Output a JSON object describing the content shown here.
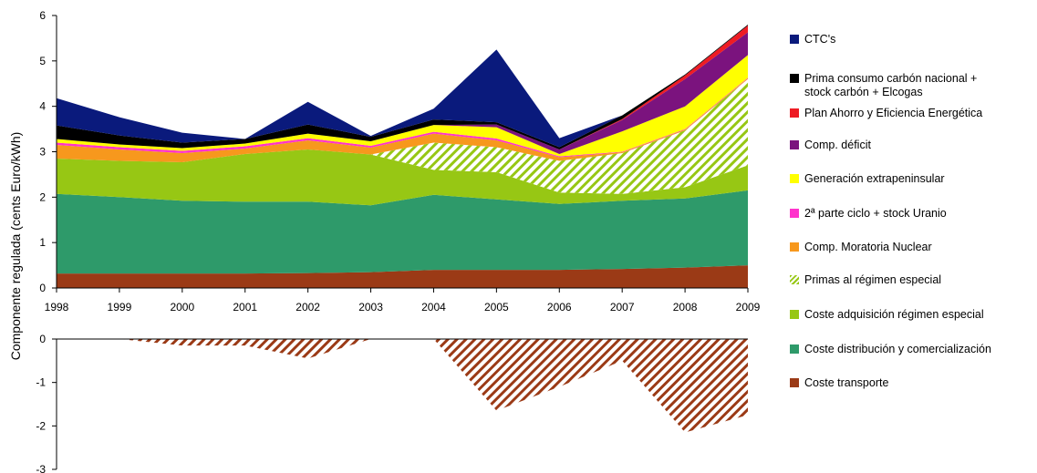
{
  "chart_data": {
    "type": "area",
    "stacked": true,
    "title": "",
    "xlabel": "",
    "ylabel": "Componente regulada (cents Euro/kWh)",
    "x": [
      1998,
      1999,
      2000,
      2001,
      2002,
      2003,
      2004,
      2005,
      2006,
      2007,
      2008,
      2009
    ],
    "x_tick_labels": [
      "1998",
      "1999",
      "2000",
      "2001",
      "2002",
      "2003",
      "2004",
      "2005",
      "2006",
      "2007",
      "2008",
      "2009"
    ],
    "upper_panel": {
      "ylim": [
        0,
        6
      ],
      "y_ticks": [
        0,
        1,
        2,
        3,
        4,
        5,
        6
      ],
      "y_tick_labels": [
        "0",
        "1",
        "2",
        "3",
        "4",
        "5",
        "6"
      ]
    },
    "lower_panel": {
      "ylim": [
        -3,
        0
      ],
      "y_ticks": [
        0,
        -1,
        -2,
        -3
      ],
      "y_tick_labels": [
        "0",
        "-1",
        "-2",
        "-3"
      ]
    },
    "series": [
      {
        "name": "Coste transporte",
        "color": "#9b3a16",
        "pattern": "solid",
        "values": [
          0.32,
          0.32,
          0.32,
          0.32,
          0.33,
          0.35,
          0.4,
          0.4,
          0.4,
          0.42,
          0.45,
          0.5
        ]
      },
      {
        "name": "Coste distribución y comercialización",
        "color": "#2e9a6a",
        "pattern": "solid",
        "values": [
          1.75,
          1.68,
          1.6,
          1.58,
          1.57,
          1.47,
          1.65,
          1.55,
          1.45,
          1.5,
          1.52,
          1.65
        ]
      },
      {
        "name": "Coste adquisición régimen especial",
        "color": "#97c714",
        "pattern": "solid",
        "values": [
          0.78,
          0.8,
          0.85,
          1.05,
          1.15,
          1.12,
          0.55,
          0.6,
          0.25,
          0.15,
          0.25,
          0.55
        ]
      },
      {
        "name": "Primas al régimen especial",
        "color": "#97c714",
        "pattern": "hatch",
        "values": [
          0,
          0,
          0,
          0,
          0,
          0,
          0.6,
          0.55,
          0.7,
          0.9,
          1.25,
          1.9
        ]
      },
      {
        "name": "Comp. Moratoria Nuclear",
        "color": "#f7981d",
        "pattern": "solid",
        "values": [
          0.3,
          0.25,
          0.2,
          0.12,
          0.2,
          0.15,
          0.2,
          0.15,
          0.08,
          0.02,
          0.02,
          0.02
        ]
      },
      {
        "name": "2ª parte ciclo + stock Uranio",
        "color": "#ff33cc",
        "pattern": "solid",
        "values": [
          0.05,
          0.05,
          0.05,
          0.05,
          0.05,
          0.04,
          0.04,
          0.04,
          0.02,
          0.01,
          0.01,
          0.01
        ]
      },
      {
        "name": "Generación extrapeninsular",
        "color": "#ffff00",
        "pattern": "solid",
        "values": [
          0.08,
          0.06,
          0.06,
          0.06,
          0.1,
          0.1,
          0.15,
          0.25,
          0.05,
          0.45,
          0.5,
          0.5
        ]
      },
      {
        "name": "Comp. déficit",
        "color": "#7b137e",
        "pattern": "solid",
        "values": [
          0,
          0,
          0,
          0,
          0,
          0,
          0,
          0.06,
          0.1,
          0.25,
          0.6,
          0.5
        ]
      },
      {
        "name": "Plan Ahorro y Eficiencia Energética",
        "color": "#ee1c24",
        "pattern": "solid",
        "values": [
          0,
          0,
          0,
          0,
          0,
          0,
          0,
          0,
          0,
          0.02,
          0.08,
          0.15
        ]
      },
      {
        "name": "Prima consumo carbón nacional + stock carbón + Elcogas",
        "color": "#000000",
        "pattern": "solid",
        "values": [
          0.3,
          0.2,
          0.12,
          0.1,
          0.2,
          0.1,
          0.12,
          0.05,
          0.05,
          0.08,
          0.02,
          0.02
        ]
      },
      {
        "name": "CTC's",
        "color": "#0a1a7c",
        "pattern": "solid",
        "values": [
          0.6,
          0.4,
          0.22,
          0.0,
          0.5,
          0.02,
          0.24,
          1.6,
          0.2,
          0,
          0,
          0
        ]
      }
    ],
    "negative_series": {
      "series_ref": "Coste transporte",
      "color": "#9b3a16",
      "pattern": "hatch",
      "values": [
        0,
        0,
        -0.15,
        -0.15,
        -0.45,
        0,
        0,
        -1.65,
        -1.1,
        -0.5,
        -2.15,
        -1.75
      ]
    },
    "legend": {
      "placement": "right",
      "entries": [
        {
          "label": "CTC's",
          "color": "#0a1a7c",
          "pattern": "solid"
        },
        {
          "label": "Prima consumo carbón nacional +\nstock carbón + Elcogas",
          "color": "#000000",
          "pattern": "solid"
        },
        {
          "label": "Plan Ahorro y Eficiencia Energética",
          "color": "#ee1c24",
          "pattern": "solid"
        },
        {
          "label": "Comp. déficit",
          "color": "#7b137e",
          "pattern": "solid"
        },
        {
          "label": "Generación extrapeninsular",
          "color": "#ffff00",
          "pattern": "solid"
        },
        {
          "label": "2ª parte ciclo + stock Uranio",
          "color": "#ff33cc",
          "pattern": "solid"
        },
        {
          "label": "Comp. Moratoria Nuclear",
          "color": "#f7981d",
          "pattern": "solid"
        },
        {
          "label": "Primas al régimen especial",
          "color": "#97c714",
          "pattern": "hatch"
        },
        {
          "label": "Coste adquisición régimen especial",
          "color": "#97c714",
          "pattern": "solid"
        },
        {
          "label": "Coste distribución y comercialización",
          "color": "#2e9a6a",
          "pattern": "solid"
        },
        {
          "label": "Coste transporte",
          "color": "#9b3a16",
          "pattern": "solid"
        }
      ]
    }
  }
}
